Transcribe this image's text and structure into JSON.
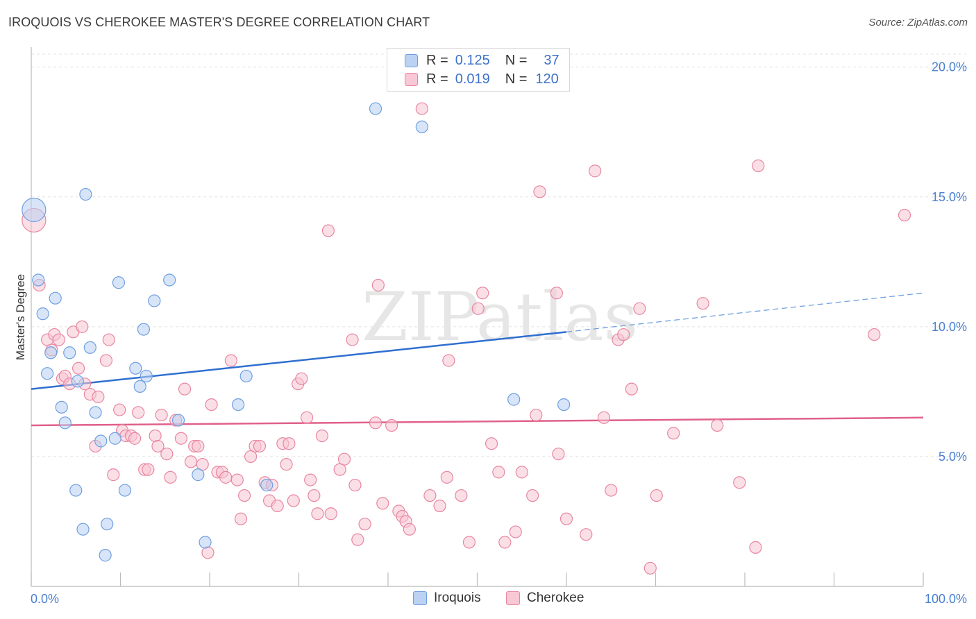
{
  "title": "IROQUOIS VS CHEROKEE MASTER'S DEGREE CORRELATION CHART",
  "source": "Source: ZipAtlas.com",
  "watermark": "ZIPatlas",
  "legend": {
    "rows": [
      {
        "r_label": "R =",
        "r_value": "0.125",
        "n_label": "N =",
        "n_value": "37",
        "color": "#a9c6ef"
      },
      {
        "r_label": "R =",
        "r_value": "0.019",
        "n_label": "N =",
        "n_value": "120",
        "color": "#f4b3c8"
      }
    ]
  },
  "bottom_legend": [
    "Iroquois",
    "Cherokee"
  ],
  "chart_data": {
    "type": "scatter",
    "title": "IROQUOIS VS CHEROKEE MASTER'S DEGREE CORRELATION CHART",
    "xlabel": "",
    "ylabel": "Master's Degree",
    "xlim": [
      0,
      100
    ],
    "ylim": [
      0,
      20.5
    ],
    "x_tick_labels": [
      "0.0%",
      "100.0%"
    ],
    "y_ticks": [
      5,
      10,
      15,
      20
    ],
    "y_tick_labels": [
      "5.0%",
      "10.0%",
      "15.0%",
      "20.0%"
    ],
    "grid": true,
    "series": [
      {
        "name": "Iroquois",
        "color": "#6f9fe0",
        "fill": "#b8d0f2",
        "trend": {
          "x0": 0,
          "y0": 7.6,
          "x1": 60,
          "y1": 9.8,
          "dashed_to_x": 100,
          "dashed_to_y": 11.3
        },
        "points": [
          [
            0.3,
            14.5
          ],
          [
            0.8,
            11.8
          ],
          [
            1.3,
            10.5
          ],
          [
            2.7,
            11.1
          ],
          [
            1.8,
            8.2
          ],
          [
            2.2,
            9.0
          ],
          [
            3.4,
            6.9
          ],
          [
            3.8,
            6.3
          ],
          [
            4.3,
            9.0
          ],
          [
            5.0,
            3.7
          ],
          [
            5.2,
            7.9
          ],
          [
            5.8,
            2.2
          ],
          [
            6.1,
            15.1
          ],
          [
            6.6,
            9.2
          ],
          [
            7.2,
            6.7
          ],
          [
            7.8,
            5.6
          ],
          [
            8.3,
            1.2
          ],
          [
            8.5,
            2.4
          ],
          [
            9.4,
            5.7
          ],
          [
            9.8,
            11.7
          ],
          [
            10.5,
            3.7
          ],
          [
            11.7,
            8.4
          ],
          [
            12.2,
            7.7
          ],
          [
            12.6,
            9.9
          ],
          [
            12.9,
            8.1
          ],
          [
            13.8,
            11.0
          ],
          [
            15.5,
            11.8
          ],
          [
            16.5,
            6.4
          ],
          [
            18.7,
            4.3
          ],
          [
            19.5,
            1.7
          ],
          [
            23.2,
            7.0
          ],
          [
            24.1,
            8.1
          ],
          [
            26.4,
            3.9
          ],
          [
            38.6,
            18.4
          ],
          [
            43.8,
            17.7
          ],
          [
            54.1,
            7.2
          ],
          [
            59.7,
            7.0
          ]
        ]
      },
      {
        "name": "Cherokee",
        "color": "#e8879f",
        "fill": "#f7c4d3",
        "trend": {
          "x0": 0,
          "y0": 6.2,
          "x1": 100,
          "y1": 6.5
        },
        "points": [
          [
            0.3,
            14.1
          ],
          [
            0.9,
            11.6
          ],
          [
            1.8,
            9.5
          ],
          [
            2.3,
            9.1
          ],
          [
            2.6,
            9.7
          ],
          [
            3.1,
            9.5
          ],
          [
            3.5,
            8.0
          ],
          [
            3.8,
            8.1
          ],
          [
            4.3,
            7.8
          ],
          [
            4.7,
            9.8
          ],
          [
            5.3,
            8.4
          ],
          [
            5.7,
            10.0
          ],
          [
            6.0,
            7.8
          ],
          [
            6.6,
            7.4
          ],
          [
            7.2,
            5.4
          ],
          [
            7.5,
            7.3
          ],
          [
            8.4,
            8.7
          ],
          [
            8.7,
            9.5
          ],
          [
            9.2,
            4.3
          ],
          [
            9.9,
            6.8
          ],
          [
            10.2,
            6.0
          ],
          [
            10.6,
            5.8
          ],
          [
            11.2,
            5.8
          ],
          [
            11.6,
            5.7
          ],
          [
            12.0,
            6.7
          ],
          [
            12.7,
            4.5
          ],
          [
            13.1,
            4.5
          ],
          [
            13.9,
            5.8
          ],
          [
            14.2,
            5.4
          ],
          [
            14.6,
            6.6
          ],
          [
            15.2,
            5.1
          ],
          [
            15.6,
            4.2
          ],
          [
            16.2,
            6.4
          ],
          [
            16.8,
            5.7
          ],
          [
            17.2,
            7.6
          ],
          [
            17.9,
            4.8
          ],
          [
            18.3,
            5.4
          ],
          [
            18.7,
            5.4
          ],
          [
            19.2,
            4.7
          ],
          [
            19.8,
            1.3
          ],
          [
            20.2,
            7.0
          ],
          [
            20.9,
            4.4
          ],
          [
            21.4,
            4.4
          ],
          [
            21.8,
            4.2
          ],
          [
            22.4,
            8.7
          ],
          [
            23.1,
            4.1
          ],
          [
            23.5,
            2.6
          ],
          [
            23.9,
            3.5
          ],
          [
            24.6,
            5.0
          ],
          [
            25.1,
            5.4
          ],
          [
            25.6,
            5.4
          ],
          [
            26.2,
            4.0
          ],
          [
            26.7,
            3.3
          ],
          [
            27.0,
            3.9
          ],
          [
            27.6,
            3.1
          ],
          [
            28.2,
            5.5
          ],
          [
            28.6,
            4.7
          ],
          [
            28.9,
            5.5
          ],
          [
            29.4,
            3.3
          ],
          [
            29.9,
            7.8
          ],
          [
            30.3,
            8.0
          ],
          [
            30.9,
            6.5
          ],
          [
            31.3,
            4.1
          ],
          [
            31.7,
            3.5
          ],
          [
            32.1,
            2.8
          ],
          [
            32.6,
            5.8
          ],
          [
            33.3,
            13.7
          ],
          [
            33.6,
            2.8
          ],
          [
            34.6,
            4.5
          ],
          [
            35.1,
            4.9
          ],
          [
            36.0,
            9.5
          ],
          [
            36.3,
            3.9
          ],
          [
            36.6,
            1.8
          ],
          [
            37.4,
            2.4
          ],
          [
            38.6,
            6.3
          ],
          [
            38.9,
            11.6
          ],
          [
            39.4,
            3.2
          ],
          [
            40.4,
            6.2
          ],
          [
            41.2,
            2.9
          ],
          [
            41.6,
            2.7
          ],
          [
            42.0,
            2.5
          ],
          [
            42.4,
            2.2
          ],
          [
            43.8,
            18.4
          ],
          [
            44.7,
            3.5
          ],
          [
            45.8,
            3.1
          ],
          [
            46.6,
            4.2
          ],
          [
            46.8,
            8.7
          ],
          [
            48.2,
            3.5
          ],
          [
            49.1,
            1.7
          ],
          [
            50.1,
            10.7
          ],
          [
            50.6,
            11.3
          ],
          [
            51.6,
            5.5
          ],
          [
            52.4,
            4.4
          ],
          [
            53.1,
            1.7
          ],
          [
            54.3,
            2.1
          ],
          [
            55.0,
            4.4
          ],
          [
            56.2,
            3.5
          ],
          [
            56.6,
            6.6
          ],
          [
            57.0,
            15.2
          ],
          [
            58.9,
            11.3
          ],
          [
            59.1,
            5.1
          ],
          [
            60.0,
            2.6
          ],
          [
            62.2,
            2.0
          ],
          [
            63.2,
            16.0
          ],
          [
            64.2,
            6.5
          ],
          [
            65.0,
            3.7
          ],
          [
            65.8,
            9.5
          ],
          [
            66.4,
            9.7
          ],
          [
            67.3,
            7.6
          ],
          [
            68.2,
            10.7
          ],
          [
            69.4,
            0.7
          ],
          [
            70.1,
            3.5
          ],
          [
            72.0,
            5.9
          ],
          [
            75.3,
            10.9
          ],
          [
            76.9,
            6.2
          ],
          [
            79.4,
            4.0
          ],
          [
            81.2,
            1.5
          ],
          [
            81.5,
            16.2
          ],
          [
            94.5,
            9.7
          ],
          [
            97.9,
            14.3
          ]
        ]
      }
    ]
  }
}
